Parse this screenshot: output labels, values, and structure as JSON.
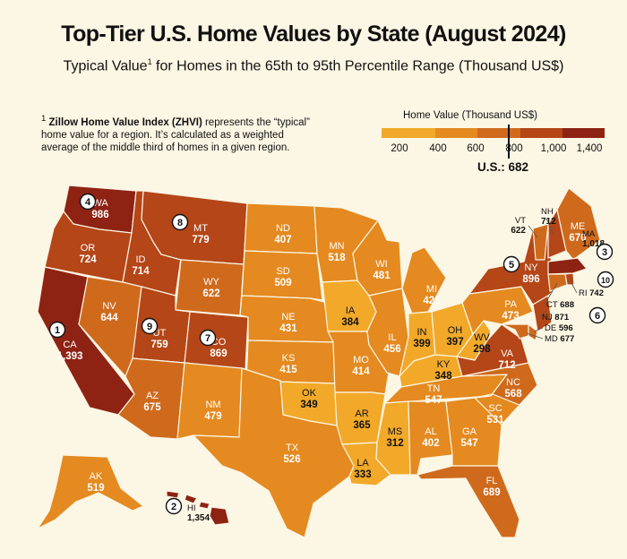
{
  "header": {
    "title": "Top-Tier U.S. Home Values by State (August 2024)",
    "subtitle_pre": "Typical Value",
    "subtitle_sup": "1",
    "subtitle_post": " for Homes in the 65th to 95th Percentile Range (Thousand US$)"
  },
  "footnote": {
    "marker": "1",
    "bold": "Zillow Home Value Index (ZHVI)",
    "text": " represents the “typical” home value for a region. It’s calculated as a weighted average of the middle third of homes in a given region."
  },
  "legend": {
    "title": "Home Value (Thousand US$)",
    "ticks": [
      "200",
      "400",
      "600",
      "800",
      "1,000",
      "1,400"
    ],
    "colors": [
      "#f2a92a",
      "#e48a20",
      "#cf6a1d",
      "#b44618",
      "#8e2314"
    ],
    "us_label": "U.S.: 682"
  },
  "colors": {
    "background": "#fcf6e4",
    "border": "#fcf6e4",
    "label_light": "#ffffff",
    "label_dark": "#111111"
  },
  "map_data": {
    "states": [
      {
        "abbr": "WA",
        "value": "986",
        "rank": "4"
      },
      {
        "abbr": "OR",
        "value": "724"
      },
      {
        "abbr": "CA",
        "value": "1,393",
        "rank": "1"
      },
      {
        "abbr": "ID",
        "value": "714"
      },
      {
        "abbr": "NV",
        "value": "644"
      },
      {
        "abbr": "MT",
        "value": "779",
        "rank": "8"
      },
      {
        "abbr": "WY",
        "value": "622"
      },
      {
        "abbr": "UT",
        "value": "759",
        "rank": "9"
      },
      {
        "abbr": "AZ",
        "value": "675"
      },
      {
        "abbr": "CO",
        "value": "869",
        "rank": "7"
      },
      {
        "abbr": "NM",
        "value": "479"
      },
      {
        "abbr": "ND",
        "value": "407"
      },
      {
        "abbr": "SD",
        "value": "509"
      },
      {
        "abbr": "NE",
        "value": "431"
      },
      {
        "abbr": "KS",
        "value": "415"
      },
      {
        "abbr": "OK",
        "value": "349"
      },
      {
        "abbr": "TX",
        "value": "526"
      },
      {
        "abbr": "MN",
        "value": "518"
      },
      {
        "abbr": "IA",
        "value": "384"
      },
      {
        "abbr": "MO",
        "value": "414"
      },
      {
        "abbr": "AR",
        "value": "365"
      },
      {
        "abbr": "LA",
        "value": "333"
      },
      {
        "abbr": "WI",
        "value": "481"
      },
      {
        "abbr": "IL",
        "value": "456"
      },
      {
        "abbr": "MI",
        "value": "421"
      },
      {
        "abbr": "IN",
        "value": "399"
      },
      {
        "abbr": "OH",
        "value": "397"
      },
      {
        "abbr": "KY",
        "value": "348"
      },
      {
        "abbr": "TN",
        "value": "547"
      },
      {
        "abbr": "MS",
        "value": "312"
      },
      {
        "abbr": "AL",
        "value": "402"
      },
      {
        "abbr": "GA",
        "value": "547"
      },
      {
        "abbr": "FL",
        "value": "689"
      },
      {
        "abbr": "SC",
        "value": "531"
      },
      {
        "abbr": "NC",
        "value": "568"
      },
      {
        "abbr": "VA",
        "value": "712"
      },
      {
        "abbr": "WV",
        "value": "298"
      },
      {
        "abbr": "PA",
        "value": "473"
      },
      {
        "abbr": "NY",
        "value": "896",
        "rank": "5"
      },
      {
        "abbr": "VT",
        "value": "622"
      },
      {
        "abbr": "NH",
        "value": "712"
      },
      {
        "abbr": "ME",
        "value": "670"
      },
      {
        "abbr": "MA",
        "value": "1,018",
        "rank": "3"
      },
      {
        "abbr": "RI",
        "value": "742",
        "rank": "10"
      },
      {
        "abbr": "CT",
        "value": "688"
      },
      {
        "abbr": "NJ",
        "value": "871",
        "rank": "6"
      },
      {
        "abbr": "DE",
        "value": "596"
      },
      {
        "abbr": "MD",
        "value": "677"
      },
      {
        "abbr": "AK",
        "value": "519"
      },
      {
        "abbr": "HI",
        "value": "1,354",
        "rank": "2"
      }
    ]
  }
}
